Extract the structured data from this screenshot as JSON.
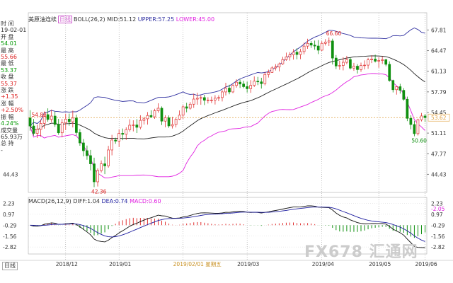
{
  "header": {
    "name": "美原油连续",
    "period": "日线",
    "boll_label": "BOLL(26,2)",
    "mid_label": "MID:51.12",
    "upper_label": "UPPER:57.25",
    "lower_label": "LOWER:45.00"
  },
  "macd_header": {
    "label": "MACD(26,12,9)",
    "diff_label": "DIFF:1.04",
    "dea_label": "DEA:0.74",
    "macd_label": "MACD:0.60"
  },
  "side_panel": [
    {
      "text": "时 间",
      "cls": "lbl"
    },
    {
      "text": "19-02-01",
      "cls": "lbl"
    },
    {
      "text": "开 盘",
      "cls": "lbl"
    },
    {
      "text": "54.01",
      "cls": "dn"
    },
    {
      "text": "最 高",
      "cls": "lbl"
    },
    {
      "text": "55.66",
      "cls": "up"
    },
    {
      "text": "最 低",
      "cls": "lbl"
    },
    {
      "text": "53.37",
      "cls": "dn"
    },
    {
      "text": "收 盘",
      "cls": "lbl"
    },
    {
      "text": "55.37",
      "cls": "up"
    },
    {
      "text": "涨 跌",
      "cls": "lbl"
    },
    {
      "text": "+1.35",
      "cls": "up"
    },
    {
      "text": "涨 幅",
      "cls": "lbl"
    },
    {
      "text": "+2.50%",
      "cls": "up"
    },
    {
      "text": "振 幅",
      "cls": "lbl"
    },
    {
      "text": "4.24%",
      "cls": "dn"
    },
    {
      "text": "成交量",
      "cls": "lbl"
    },
    {
      "text": "65.93万",
      "cls": "lbl"
    },
    {
      "text": "总 持",
      "cls": "lbl"
    },
    {
      "text": "-",
      "cls": "lbl"
    }
  ],
  "period_button": "日线",
  "watermark": "FX678 汇通网",
  "chart_data": [
    {
      "type": "candlestick",
      "ylim": [
        41.5,
        69.0
      ],
      "right_ticks": [
        67.81,
        64.47,
        61.13,
        57.79,
        54.45,
        51.11,
        47.77,
        44.43
      ],
      "left_ticks": [
        44.43
      ],
      "current_price_label": "53.62",
      "price_line": 53.62,
      "annotations": [
        {
          "text": "54.82",
          "index": 0,
          "value": 54.82
        },
        {
          "text": "42.36",
          "index": 18,
          "value": 42.36
        },
        {
          "text": "66.60",
          "index": 84,
          "value": 66.6
        },
        {
          "text": "50.60",
          "index": 108,
          "value": 50.6
        }
      ],
      "x_labels": [
        {
          "text": "2018/12",
          "index": 10
        },
        {
          "text": "2019/01",
          "index": 25
        },
        {
          "text": "2019/02/01 星期五",
          "index": 43
        },
        {
          "text": "2019/03",
          "index": 61
        },
        {
          "text": "2019/04",
          "index": 82
        },
        {
          "text": "2019/05",
          "index": 98
        },
        {
          "text": "2019/06",
          "index": 111
        }
      ],
      "series_boll": [
        "UPPER",
        "MID",
        "LOWER"
      ],
      "colors": {
        "up": "#e03030",
        "down": "#109010",
        "upper": "#3030a0",
        "mid": "#202020",
        "lower": "#e020e0",
        "price_line": "#e0a040"
      },
      "candles": [
        [
          53.55,
          54.82,
          51.5,
          52.26
        ],
        [
          52.26,
          53.4,
          50.7,
          51.06
        ],
        [
          51.06,
          52.47,
          50.32,
          51.72
        ],
        [
          51.72,
          53.34,
          50.54,
          52.68
        ],
        [
          52.68,
          54.62,
          51.83,
          54.1
        ],
        [
          54.1,
          55.12,
          52.96,
          53.32
        ],
        [
          53.32,
          54.92,
          52.87,
          53.87
        ],
        [
          53.87,
          54.57,
          52.11,
          52.52
        ],
        [
          52.52,
          53.42,
          50.83,
          51.16
        ],
        [
          51.16,
          53.39,
          50.43,
          52.77
        ],
        [
          52.77,
          54.25,
          51.6,
          53.38
        ],
        [
          53.38,
          54.27,
          52.31,
          52.95
        ],
        [
          52.95,
          54.75,
          52.03,
          53.55
        ],
        [
          53.55,
          54.1,
          50.71,
          51.2
        ],
        [
          51.2,
          51.75,
          49.06,
          49.52
        ],
        [
          49.52,
          50.15,
          47.35,
          48.26
        ],
        [
          48.26,
          49.09,
          46.8,
          47.46
        ],
        [
          47.46,
          48.39,
          45.08,
          46.13
        ],
        [
          46.13,
          47.13,
          42.36,
          43.22
        ],
        [
          43.22,
          45.4,
          42.46,
          45.05
        ],
        [
          45.05,
          46.68,
          44.74,
          46.14
        ],
        [
          46.14,
          47.28,
          44.47,
          45.8
        ],
        [
          45.8,
          49.04,
          45.51,
          48.38
        ],
        [
          48.38,
          50.83,
          47.51,
          49.99
        ],
        [
          49.99,
          50.36,
          49.38,
          49.82
        ],
        [
          49.82,
          51.72,
          48.85,
          51.07
        ],
        [
          51.07,
          51.85,
          49.96,
          50.92
        ],
        [
          50.92,
          52.04,
          50.0,
          51.67
        ],
        [
          51.67,
          53.35,
          51.35,
          52.39
        ],
        [
          52.39,
          53.19,
          51.39,
          52.43
        ],
        [
          52.43,
          53.38,
          51.12,
          52.05
        ],
        [
          52.05,
          54.0,
          51.73,
          53.17
        ],
        [
          53.17,
          53.75,
          52.5,
          53.43
        ],
        [
          53.43,
          54.52,
          52.49,
          53.96
        ],
        [
          53.96,
          54.81,
          53.53,
          53.75
        ],
        [
          53.75,
          55.05,
          53.41,
          54.73
        ],
        [
          54.73,
          55.94,
          54.42,
          55.14
        ],
        [
          55.14,
          55.43,
          52.42,
          53.05
        ],
        [
          53.05,
          54.01,
          52.06,
          53.59
        ],
        [
          53.59,
          53.98,
          51.97,
          52.28
        ],
        [
          52.28,
          53.76,
          51.85,
          52.5
        ],
        [
          52.5,
          53.62,
          52.03,
          53.36
        ],
        [
          53.36,
          54.78,
          53.23,
          54.01
        ],
        [
          54.01,
          55.66,
          53.37,
          55.37
        ],
        [
          55.37,
          56.02,
          54.48,
          55.14
        ],
        [
          55.14,
          56.14,
          54.9,
          55.79
        ],
        [
          55.79,
          57.5,
          55.19,
          56.62
        ],
        [
          56.62,
          57.64,
          55.71,
          56.76
        ],
        [
          56.76,
          57.22,
          55.7,
          56.86
        ],
        [
          56.86,
          57.32,
          55.65,
          56.43
        ],
        [
          56.43,
          56.92,
          55.91,
          56.47
        ],
        [
          56.47,
          57.02,
          55.97,
          56.47
        ],
        [
          56.47,
          57.25,
          55.74,
          56.76
        ],
        [
          56.76,
          57.24,
          56.28,
          56.87
        ],
        [
          56.87,
          58.08,
          56.24,
          57.78
        ],
        [
          57.78,
          59.26,
          57.2,
          58.4
        ],
        [
          58.4,
          58.95,
          57.4,
          57.78
        ],
        [
          57.78,
          59.1,
          57.59,
          58.83
        ],
        [
          58.83,
          59.82,
          58.47,
          59.36
        ],
        [
          59.36,
          59.79,
          58.41,
          59.06
        ],
        [
          59.06,
          59.58,
          58.38,
          58.64
        ],
        [
          58.64,
          59.44,
          57.68,
          58.3
        ],
        [
          58.3,
          59.69,
          57.63,
          58.84
        ],
        [
          58.84,
          60.3,
          58.58,
          59.52
        ],
        [
          59.52,
          60.21,
          58.88,
          59.41
        ],
        [
          59.41,
          60.07,
          58.32,
          59.12
        ],
        [
          59.12,
          61.05,
          58.84,
          60.61
        ],
        [
          60.61,
          61.39,
          60.11,
          60.94
        ],
        [
          60.94,
          61.96,
          60.88,
          61.67
        ],
        [
          61.67,
          62.28,
          61.25,
          61.81
        ],
        [
          61.81,
          62.54,
          61.11,
          62.32
        ],
        [
          62.32,
          63.47,
          62.15,
          63.02
        ],
        [
          63.02,
          64.14,
          62.83,
          63.46
        ],
        [
          63.46,
          64.22,
          62.85,
          63.79
        ],
        [
          63.79,
          64.72,
          63.02,
          64.21
        ],
        [
          64.21,
          64.84,
          63.07,
          63.84
        ],
        [
          63.84,
          64.77,
          63.09,
          64.31
        ],
        [
          64.31,
          65.76,
          63.86,
          65.2
        ],
        [
          65.2,
          66.39,
          64.76,
          65.64
        ],
        [
          65.64,
          66.01,
          64.91,
          65.36
        ],
        [
          65.36,
          66.09,
          64.62,
          65.21
        ],
        [
          65.21,
          66.17,
          63.91,
          64.54
        ],
        [
          64.54,
          66.0,
          64.4,
          65.65
        ],
        [
          65.65,
          66.33,
          65.3,
          65.86
        ],
        [
          65.86,
          66.6,
          65.22,
          66.03
        ],
        [
          66.03,
          66.4,
          62.22,
          63.26
        ],
        [
          63.26,
          63.76,
          61.48,
          61.98
        ],
        [
          61.98,
          62.84,
          61.37,
          62.06
        ],
        [
          62.06,
          63.4,
          61.27,
          62.58
        ],
        [
          62.58,
          63.62,
          62.28,
          63.03
        ],
        [
          63.03,
          63.34,
          61.43,
          61.64
        ],
        [
          61.64,
          62.49,
          61.19,
          61.95
        ],
        [
          61.95,
          62.28,
          60.77,
          61.4
        ],
        [
          61.4,
          62.53,
          61.03,
          62.06
        ],
        [
          62.06,
          62.88,
          61.43,
          62.12
        ],
        [
          62.12,
          63.3,
          61.53,
          62.97
        ],
        [
          62.97,
          63.72,
          62.45,
          63.1
        ],
        [
          63.1,
          63.81,
          62.55,
          62.76
        ],
        [
          62.76,
          63.39,
          61.69,
          62.87
        ],
        [
          62.87,
          63.53,
          62.31,
          62.99
        ],
        [
          62.99,
          63.16,
          61.93,
          62.25
        ],
        [
          62.25,
          62.73,
          59.43,
          59.63
        ],
        [
          59.63,
          59.76,
          57.7,
          58.14
        ],
        [
          58.14,
          58.73,
          57.34,
          58.63
        ],
        [
          58.63,
          59.1,
          57.51,
          58.04
        ],
        [
          58.04,
          58.39,
          56.35,
          56.59
        ],
        [
          56.59,
          57.02,
          53.05,
          53.5
        ],
        [
          53.5,
          53.99,
          51.72,
          52.5
        ],
        [
          52.5,
          53.11,
          50.6,
          51.02
        ],
        [
          51.02,
          53.45,
          50.72,
          53.27
        ],
        [
          53.27,
          54.38,
          53.0,
          53.88
        ],
        [
          53.88,
          54.22,
          52.91,
          53.62
        ]
      ]
    },
    {
      "type": "macd",
      "ylim": [
        -3.3,
        2.6
      ],
      "right_ticks": [
        2.23,
        0.97,
        -0.29,
        -1.56,
        -2.82
      ],
      "left_ticks": [
        2.23,
        0.97,
        -0.29,
        -1.56,
        -2.82
      ],
      "right_extra_label": "-2.05",
      "colors": {
        "diff": "#101010",
        "dea": "#2020a0",
        "hist_up": "#e03030",
        "hist_down": "#109010"
      }
    }
  ]
}
